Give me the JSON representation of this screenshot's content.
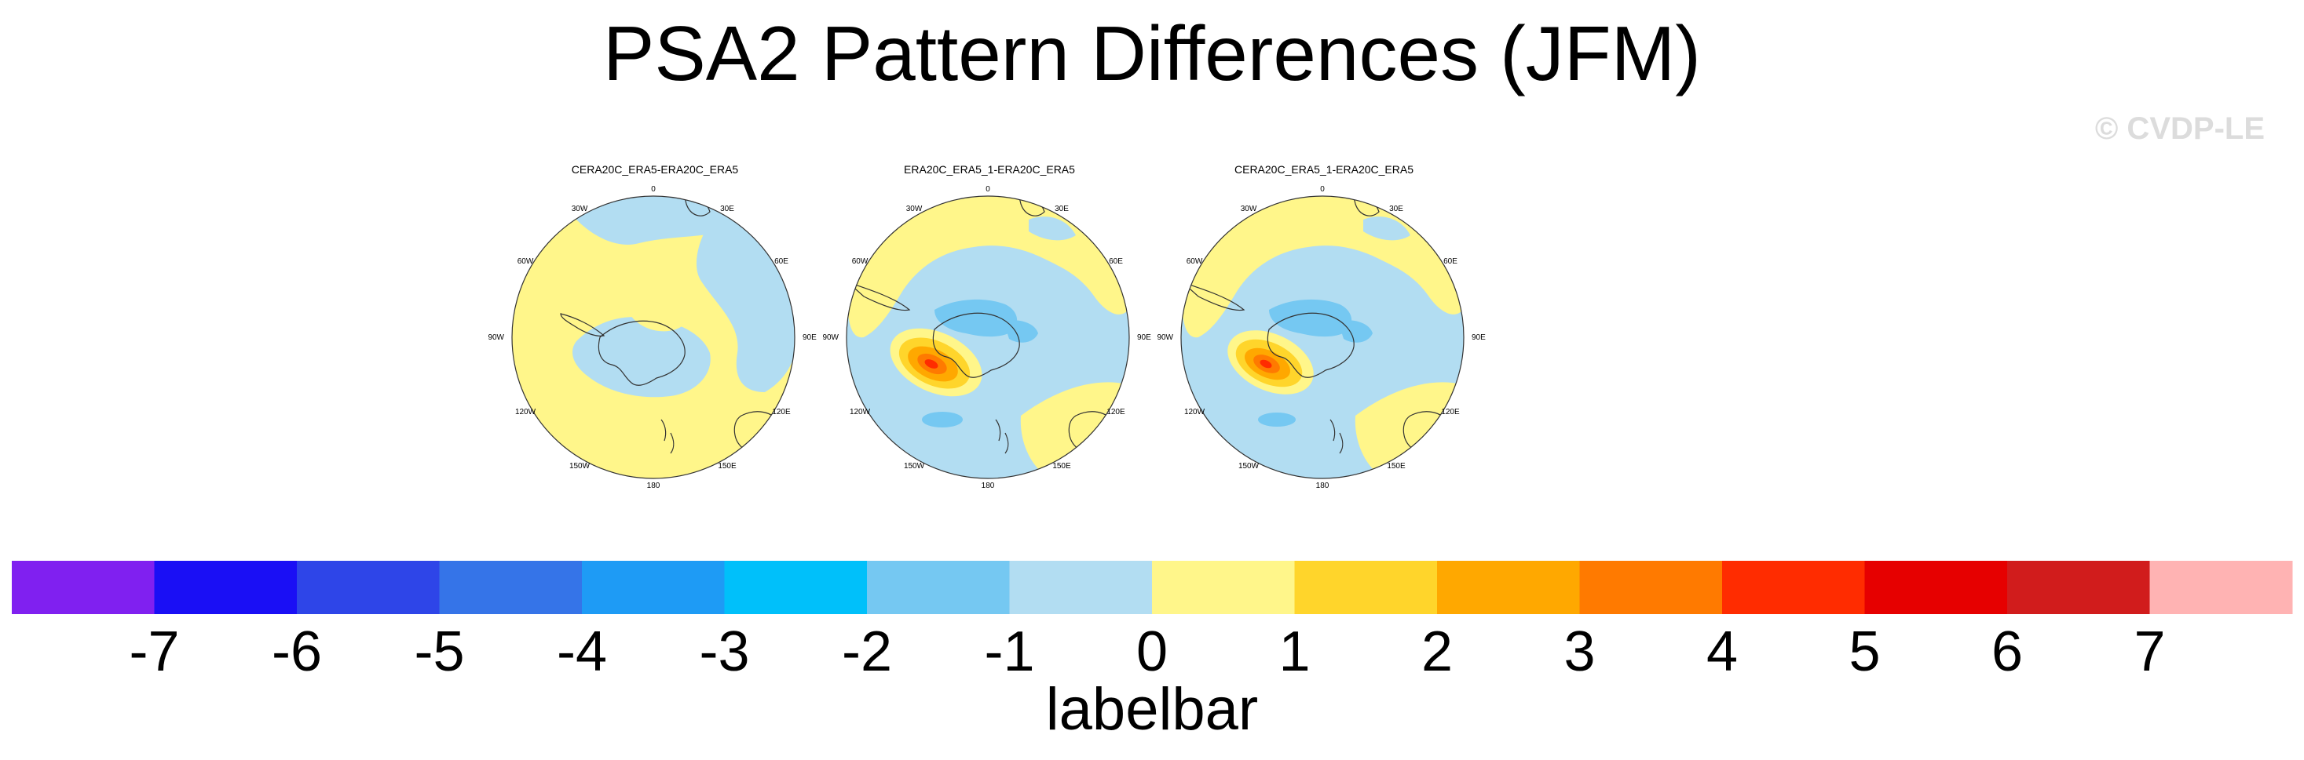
{
  "title": "PSA2 Pattern Differences (JFM)",
  "watermark": "© CVDP-LE",
  "panels": [
    {
      "title": "CERA20C_ERA5-ERA20C_ERA5",
      "lon_labels": [
        "0",
        "30E",
        "60E",
        "90E",
        "120E",
        "150E",
        "180",
        "150W",
        "120W",
        "90W",
        "60W",
        "30W"
      ]
    },
    {
      "title": "ERA20C_ERA5_1-ERA20C_ERA5",
      "lon_labels": [
        "0",
        "30E",
        "60E",
        "90E",
        "120E",
        "150E",
        "180",
        "150W",
        "120W",
        "90W",
        "60W",
        "30W"
      ]
    },
    {
      "title": "CERA20C_ERA5_1-ERA20C_ERA5",
      "lon_labels": [
        "0",
        "30E",
        "60E",
        "90E",
        "120E",
        "150E",
        "180",
        "150W",
        "120W",
        "90W",
        "60W",
        "30W"
      ]
    }
  ],
  "labelbar": {
    "title": "labelbar",
    "ticks": [
      "-7",
      "-6",
      "-5",
      "-4",
      "-3",
      "-2",
      "-1",
      "0",
      "1",
      "2",
      "3",
      "4",
      "5",
      "6",
      "7"
    ],
    "colors": [
      "#8020f0",
      "#1a0ff5",
      "#2e45e8",
      "#3574e8",
      "#1e9bf5",
      "#00c0fa",
      "#75c8f2",
      "#b2ddf2",
      "#fff68a",
      "#ffd52b",
      "#ffa800",
      "#ff7a00",
      "#ff2c00",
      "#e60000",
      "#d11c1c",
      "#ffb3b3"
    ]
  },
  "colors": {
    "land_outline": "#333333",
    "neg_light": "#b2ddf2",
    "pos_light": "#fff68a"
  }
}
